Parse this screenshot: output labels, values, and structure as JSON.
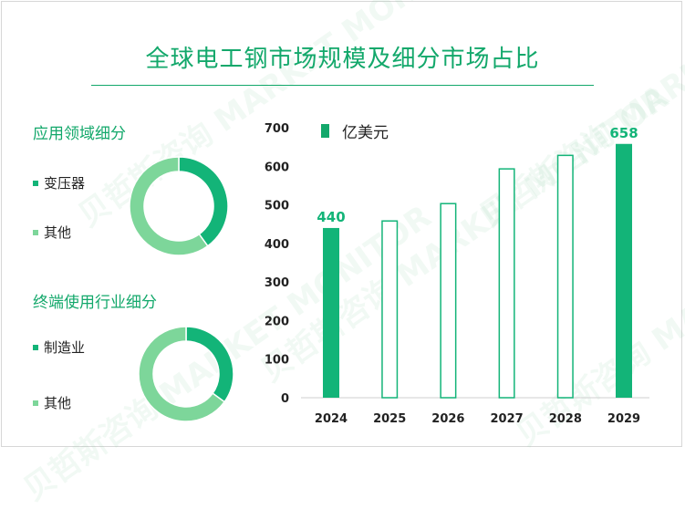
{
  "title": "全球电工钢市场规模及细分市场占比",
  "application": {
    "title": "应用领域细分",
    "items": [
      {
        "label": "变压器",
        "value": 40,
        "color": "#13b478"
      },
      {
        "label": "其他",
        "value": 60,
        "color": "#7dd69a"
      }
    ]
  },
  "end_use": {
    "title": "终端使用行业细分",
    "items": [
      {
        "label": "制造业",
        "value": 35,
        "color": "#13b478"
      },
      {
        "label": "其他",
        "value": 65,
        "color": "#7dd69a"
      }
    ]
  },
  "chart_data": {
    "type": "bar",
    "legend": "亿美元",
    "categories": [
      "2024",
      "2025",
      "2026",
      "2027",
      "2028",
      "2029"
    ],
    "values": [
      440,
      460,
      505,
      595,
      630,
      658
    ],
    "filled": [
      true,
      false,
      false,
      false,
      false,
      true
    ],
    "data_labels": [
      "440",
      "",
      "",
      "",
      "",
      "658"
    ],
    "ylim": [
      0,
      700
    ],
    "yticks": [
      "0",
      "100",
      "200",
      "300",
      "400",
      "500",
      "600",
      "700"
    ],
    "grid": false,
    "color": "#13b478"
  },
  "watermark": "贝哲斯咨询 MARKET MONITOR"
}
